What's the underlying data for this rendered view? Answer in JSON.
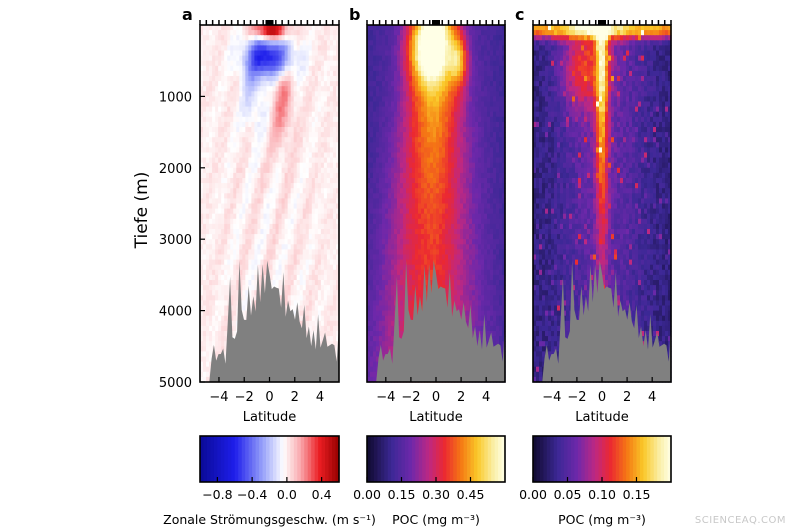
{
  "chart_data": [
    {
      "type": "heatmap",
      "panel_label": "a",
      "xlabel": "Latitude",
      "ylabel": "Tiefe (m)",
      "x_ticks": [
        -4,
        -2,
        0,
        2,
        4
      ],
      "y_ticks": [
        1000,
        2000,
        3000,
        4000,
        5000
      ],
      "xlim": [
        -5.5,
        5.5
      ],
      "ylim": [
        0,
        5000
      ],
      "y_inverted": true,
      "colorbar": {
        "label": "Zonale Strömungsgeschw. (m s⁻¹)",
        "ticks": [
          -0.8,
          -0.4,
          0.0,
          0.4
        ],
        "tick_labels": [
          "−0.8",
          "−0.4",
          "0.0",
          "0.4"
        ],
        "range": [
          -1.0,
          0.6
        ],
        "colormap": "blue-white-red"
      },
      "features": [
        {
          "desc": "eastward jet",
          "lat": 0,
          "depth": 100,
          "value": 0.55
        },
        {
          "desc": "westward undercurrent",
          "lat": 0,
          "depth": 450,
          "value": -0.6
        }
      ]
    },
    {
      "type": "heatmap",
      "panel_label": "b",
      "xlabel": "Latitude",
      "x_ticks": [
        -4,
        -2,
        0,
        2,
        4
      ],
      "xlim": [
        -5.5,
        5.5
      ],
      "ylim": [
        0,
        5000
      ],
      "y_inverted": true,
      "colorbar": {
        "label": "POC (mg m⁻³)",
        "ticks": [
          0.0,
          0.15,
          0.3,
          0.45
        ],
        "tick_labels": [
          "0.00",
          "0.15",
          "0.30",
          "0.45"
        ],
        "range": [
          0.0,
          0.6
        ],
        "colormap": "thermal"
      },
      "features": [
        {
          "desc": "near-surface maximum",
          "lat": 0,
          "depth": 300,
          "value": 0.5
        },
        {
          "desc": "equatorial plume",
          "lat": -0.5,
          "depth": 2500,
          "value": 0.3
        }
      ]
    },
    {
      "type": "heatmap",
      "panel_label": "c",
      "xlabel": "Latitude",
      "x_ticks": [
        -4,
        -2,
        0,
        2,
        4
      ],
      "xlim": [
        -5.5,
        5.5
      ],
      "ylim": [
        0,
        5000
      ],
      "y_inverted": true,
      "colorbar": {
        "label": "POC (mg m⁻³)",
        "ticks": [
          0.0,
          0.05,
          0.1,
          0.15
        ],
        "tick_labels": [
          "0.00",
          "0.05",
          "0.10",
          "0.15"
        ],
        "range": [
          0.0,
          0.2
        ],
        "colormap": "thermal"
      },
      "features": [
        {
          "desc": "surface band",
          "lat": 0,
          "depth": 100,
          "value": 0.18
        },
        {
          "desc": "equatorial filament",
          "lat": 0,
          "depth": 1500,
          "value": 0.12
        }
      ]
    }
  ],
  "watermark": "SCIENCEAQ.COM"
}
